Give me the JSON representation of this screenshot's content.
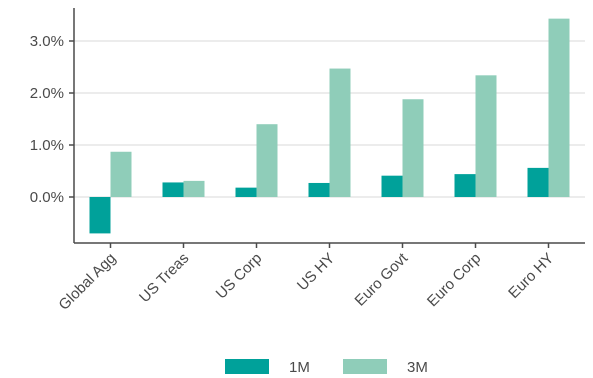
{
  "chart_data": {
    "type": "bar",
    "categories": [
      "Global Agg",
      "US Treas",
      "US Corp",
      "US HY",
      "Euro Govt",
      "Euro Corp",
      "Euro HY"
    ],
    "series": [
      {
        "name": "1M",
        "color": "#00a19a",
        "values": [
          -0.7,
          0.28,
          0.18,
          0.27,
          0.41,
          0.44,
          0.56
        ]
      },
      {
        "name": "3M",
        "color": "#8fcdb9",
        "values": [
          0.87,
          0.31,
          1.4,
          2.47,
          1.88,
          2.34,
          3.43
        ]
      }
    ],
    "yticks": [
      0,
      1,
      2,
      3
    ],
    "ytick_labels": [
      "0.0%",
      "1.0%",
      "2.0%",
      "3.0%"
    ],
    "ylim": [
      -0.9,
      3.7
    ],
    "grid": "horizontal",
    "legend": "bottom-center",
    "title": "",
    "xlabel": "",
    "ylabel": ""
  }
}
